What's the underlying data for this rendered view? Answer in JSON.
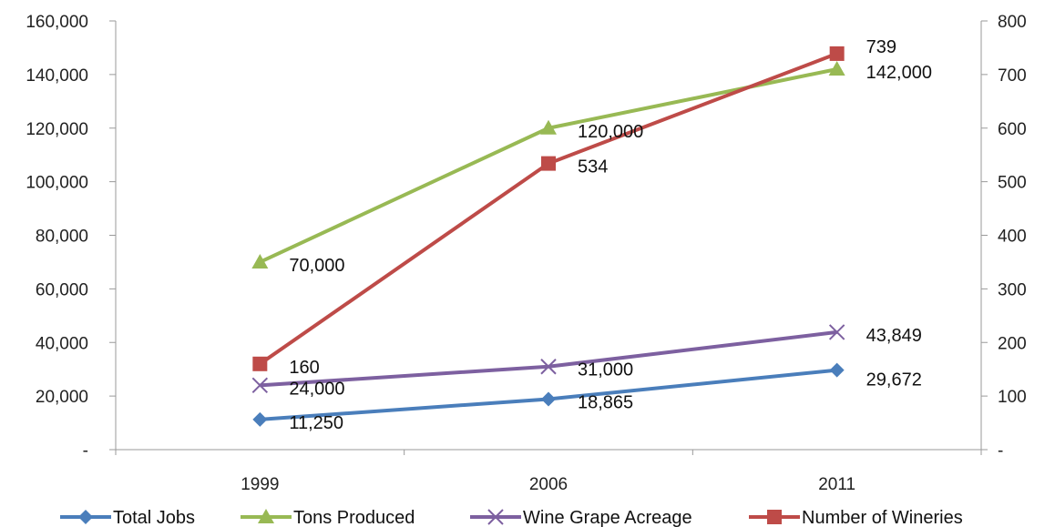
{
  "chart_data": {
    "type": "line",
    "categories": [
      "1999",
      "2006",
      "2011"
    ],
    "y_left": {
      "ylim": [
        0,
        160000
      ],
      "ticks": [
        0,
        20000,
        40000,
        60000,
        80000,
        100000,
        120000,
        140000,
        160000
      ],
      "tick_labels": [
        "-",
        "20,000",
        "40,000",
        "60,000",
        "80,000",
        "100,000",
        "120,000",
        "140,000",
        "160,000"
      ]
    },
    "y_right": {
      "ylim": [
        0,
        800
      ],
      "ticks": [
        0,
        100,
        200,
        300,
        400,
        500,
        600,
        700,
        800
      ],
      "tick_labels": [
        "-",
        "100",
        "200",
        "300",
        "400",
        "500",
        "600",
        "700",
        "800"
      ]
    },
    "series": [
      {
        "name": "Total Jobs",
        "axis": "left",
        "marker": "diamond",
        "color": "#4a7ebb",
        "values": [
          11250,
          18865,
          29672
        ],
        "labels": [
          "11,250",
          "18,865",
          "29,672"
        ]
      },
      {
        "name": "Tons Produced",
        "axis": "left",
        "marker": "triangle",
        "color": "#98b954",
        "values": [
          70000,
          120000,
          142000
        ],
        "labels": [
          "70,000",
          "120,000",
          "142,000"
        ]
      },
      {
        "name": "Wine Grape Acreage",
        "axis": "left",
        "marker": "x",
        "color": "#7d60a0",
        "values": [
          24000,
          31000,
          43849
        ],
        "labels": [
          "24,000",
          "31,000",
          "43,849"
        ]
      },
      {
        "name": "Number of Wineries",
        "axis": "right",
        "marker": "square",
        "color": "#be4b48",
        "values": [
          160,
          534,
          739
        ],
        "labels": [
          "160",
          "534",
          "739"
        ]
      }
    ],
    "legend_position": "bottom",
    "grid": false
  }
}
